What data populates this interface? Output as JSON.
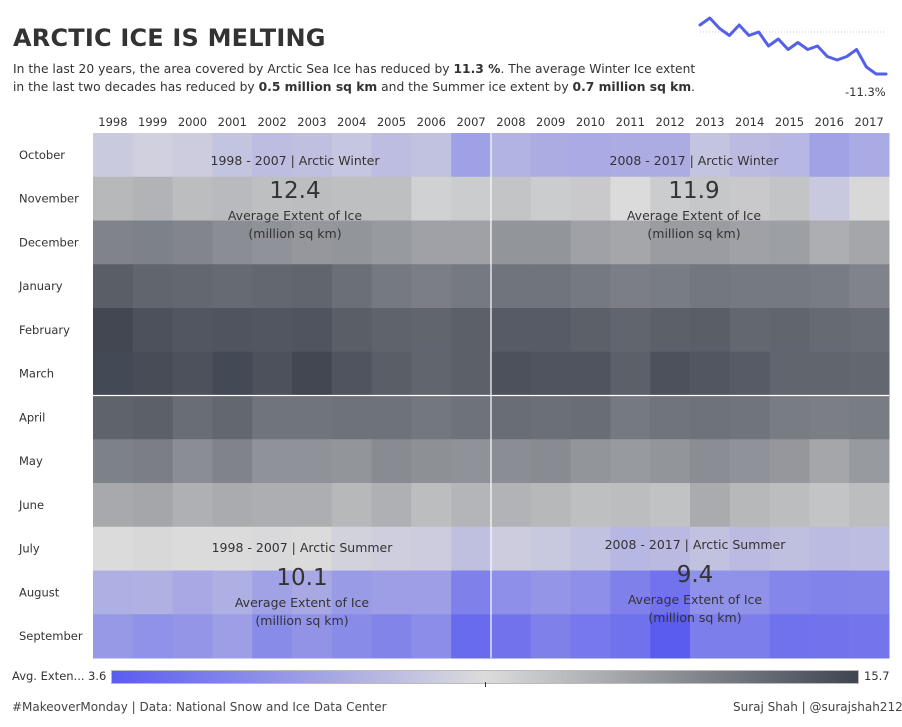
{
  "header": {
    "title": "ARCTIC ICE IS MELTING",
    "subtitle": {
      "p1": "In the last 20 years, the area covered by Arctic Sea Ice has reduced by ",
      "v1": "11.3 %",
      "p2": ". The average Winter Ice extent in the last two decades has reduced by ",
      "v2": "0.5 million sq km",
      "p3": " and the Summer ice extent by ",
      "v3": "0.7 million sq km",
      "p4": "."
    }
  },
  "sparkline": {
    "change_label": "-11.3%",
    "line_color": "#5560e8"
  },
  "legend": {
    "label": "Avg. Exten...",
    "min": "3.6",
    "max": "15.7",
    "color_low": "#5a5cf0",
    "color_mid": "#dcdcdc",
    "color_high": "#3f4550"
  },
  "footer": {
    "left": "#MakeoverMonday | Data: National Snow and Ice Data Center",
    "right": "Suraj Shah | @surajshah212"
  },
  "chart_data": {
    "type": "heatmap",
    "x": [
      "1998",
      "1999",
      "2000",
      "2001",
      "2002",
      "2003",
      "2004",
      "2005",
      "2006",
      "2007",
      "2008",
      "2009",
      "2010",
      "2011",
      "2012",
      "2013",
      "2014",
      "2015",
      "2016",
      "2017"
    ],
    "y": [
      "October",
      "November",
      "December",
      "January",
      "February",
      "March",
      "April",
      "May",
      "June",
      "July",
      "August",
      "September"
    ],
    "color_range": [
      3.6,
      15.7
    ],
    "values": [
      [
        8.8,
        9.1,
        8.9,
        8.5,
        8.2,
        8.3,
        8.6,
        8.2,
        8.4,
        6.8,
        7.7,
        7.4,
        7.3,
        7.4,
        7.4,
        8.5,
        8.1,
        7.9,
        6.9,
        7.3
      ],
      [
        11.1,
        11.3,
        10.9,
        11.0,
        10.8,
        10.9,
        10.8,
        10.8,
        10.1,
        10.3,
        10.6,
        10.3,
        10.4,
        9.7,
        10.3,
        10.5,
        10.4,
        10.6,
        8.7,
        9.8
      ],
      [
        13.2,
        13.3,
        13.1,
        12.8,
        12.6,
        12.4,
        12.5,
        12.3,
        12.0,
        12.0,
        12.5,
        12.5,
        12.0,
        11.8,
        12.2,
        12.2,
        12.0,
        12.1,
        11.5,
        11.8
      ],
      [
        14.7,
        14.4,
        14.3,
        14.2,
        14.3,
        14.4,
        14.0,
        13.6,
        13.4,
        13.6,
        13.8,
        13.8,
        13.6,
        13.4,
        13.5,
        13.7,
        13.6,
        13.6,
        13.5,
        13.2
      ],
      [
        15.6,
        15.2,
        15.0,
        15.1,
        15.0,
        15.1,
        14.7,
        14.5,
        14.4,
        14.6,
        14.8,
        14.8,
        14.6,
        14.4,
        14.6,
        14.7,
        14.3,
        14.4,
        14.2,
        14.1
      ],
      [
        15.5,
        15.4,
        15.2,
        15.5,
        15.2,
        15.6,
        15.1,
        14.7,
        14.4,
        14.6,
        15.2,
        15.1,
        15.1,
        14.6,
        15.2,
        15.0,
        14.8,
        14.4,
        14.4,
        14.3
      ],
      [
        14.5,
        14.6,
        14.1,
        14.3,
        13.8,
        13.8,
        13.9,
        13.9,
        13.7,
        13.9,
        14.1,
        14.0,
        14.1,
        13.6,
        13.8,
        13.9,
        13.8,
        13.5,
        13.4,
        13.5
      ],
      [
        13.3,
        13.4,
        12.8,
        13.2,
        12.6,
        12.6,
        12.5,
        12.9,
        12.7,
        12.6,
        12.8,
        12.9,
        12.5,
        12.3,
        12.5,
        12.8,
        12.6,
        12.4,
        11.8,
        12.3
      ],
      [
        11.7,
        11.8,
        11.4,
        11.6,
        11.5,
        11.5,
        11.1,
        11.4,
        10.9,
        11.2,
        11.3,
        11.1,
        10.8,
        10.9,
        10.7,
        11.6,
        11.1,
        10.9,
        10.6,
        10.9
      ],
      [
        9.6,
        9.8,
        9.6,
        9.6,
        9.5,
        9.6,
        9.2,
        9.0,
        8.9,
        8.3,
        8.9,
        8.7,
        8.4,
        7.9,
        8.0,
        8.4,
        8.1,
        8.3,
        8.1,
        8.2
      ],
      [
        7.5,
        7.6,
        7.2,
        7.5,
        6.9,
        7.2,
        6.6,
        6.7,
        6.7,
        5.3,
        6.0,
        6.3,
        6.0,
        5.3,
        4.7,
        6.1,
        6.1,
        5.6,
        5.4,
        5.5
      ],
      [
        6.5,
        6.1,
        6.3,
        6.7,
        5.8,
        6.2,
        5.8,
        5.5,
        5.9,
        4.3,
        4.7,
        5.3,
        4.9,
        4.6,
        3.6,
        5.2,
        5.2,
        4.6,
        4.7,
        4.8
      ]
    ],
    "annotations": [
      {
        "period": "1998 - 2007 | Arctic Winter",
        "value": "12.4",
        "label": "Average Extent of Ice",
        "unit": "(million sq km)"
      },
      {
        "period": "2008 - 2017 | Arctic Winter",
        "value": "11.9",
        "label": "Average Extent of Ice",
        "unit": "(million sq km)"
      },
      {
        "period": "1998 - 2007 | Arctic Summer",
        "value": "10.1",
        "label": "Average Extent of Ice",
        "unit": "(million sq km)"
      },
      {
        "period": "2008 - 2017 | Arctic Summer",
        "value": "9.4",
        "label": "Average Extent of Ice",
        "unit": "(million sq km)"
      }
    ],
    "sparkline": {
      "type": "line",
      "x": [
        "1998",
        "1999",
        "2000",
        "2001",
        "2002",
        "2003",
        "2004",
        "2005",
        "2006",
        "2007",
        "2008",
        "2009",
        "2010",
        "2011",
        "2012",
        "2013",
        "2014",
        "2015",
        "2016",
        "2017"
      ],
      "y": [
        12.3,
        12.5,
        12.2,
        12.0,
        12.3,
        12.0,
        12.1,
        11.7,
        11.9,
        11.6,
        11.8,
        11.6,
        11.7,
        11.4,
        11.3,
        11.4,
        11.6,
        11.1,
        10.9,
        10.9
      ]
    }
  }
}
